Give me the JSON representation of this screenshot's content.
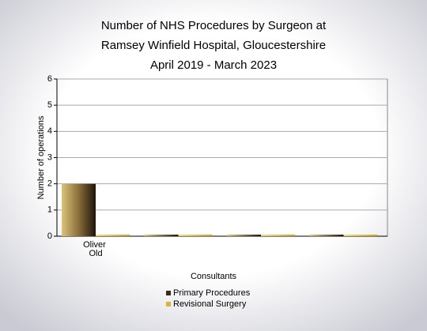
{
  "chart_data": {
    "type": "bar",
    "title": [
      "Number of NHS Procedures by Surgeon at",
      "Ramsey Winfield Hospital, Gloucestershire",
      "April 2019 - March 2023"
    ],
    "x_label": "Consultants",
    "y_label": "Number of operations",
    "categories": [
      "Oliver Old",
      null,
      null,
      null
    ],
    "series": [
      {
        "name": "Primary Procedures",
        "color": "#3b2a17",
        "values": [
          2,
          0,
          0,
          0
        ]
      },
      {
        "name": "Revisional Surgery",
        "color": "#d9b43a",
        "values": [
          0,
          0,
          0,
          0
        ]
      }
    ],
    "ylim": [
      0,
      6
    ],
    "yticks": [
      0,
      1,
      2,
      3,
      4,
      5,
      6
    ],
    "grid": true,
    "legend": "bottom"
  }
}
